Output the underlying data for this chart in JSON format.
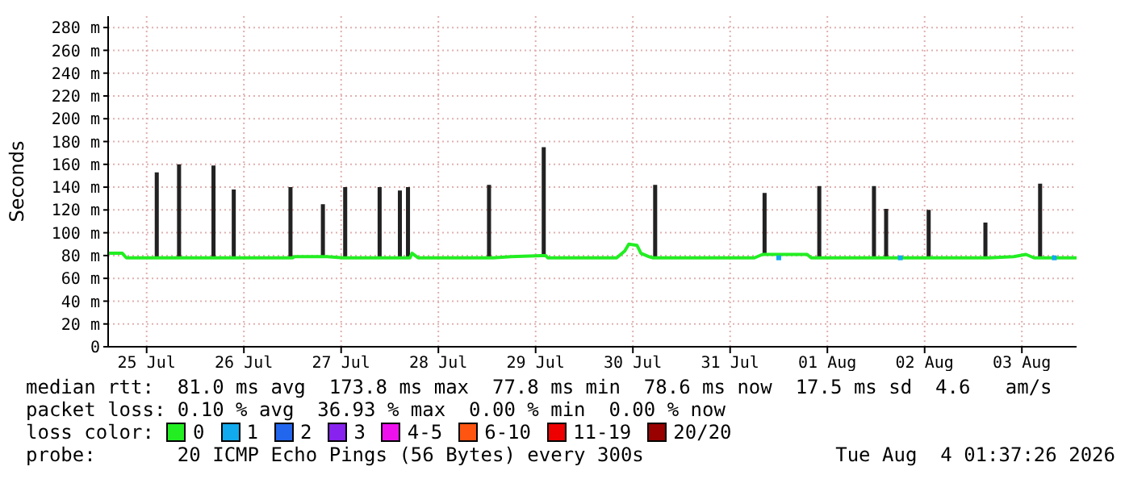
{
  "chart_data": {
    "type": "line",
    "ylabel": "Seconds",
    "x": [
      "2026-07-25T02:30",
      "2026-07-25T06:00",
      "2026-07-25T07:00",
      "2026-07-25T14:00",
      "2026-07-25T15:00",
      "2026-07-25T15:30",
      "2026-07-25T19:30",
      "2026-07-25T20:30",
      "2026-07-25T21:00",
      "2026-07-26T04:00",
      "2026-07-26T05:00",
      "2026-07-26T05:30",
      "2026-07-26T09:00",
      "2026-07-26T10:00",
      "2026-07-26T10:30",
      "2026-07-26T23:00",
      "2026-07-27T00:00",
      "2026-07-27T00:30",
      "2026-07-27T07:00",
      "2026-07-27T08:00",
      "2026-07-27T08:30",
      "2026-07-27T12:30",
      "2026-07-27T13:30",
      "2026-07-27T14:00",
      "2026-07-27T21:00",
      "2026-07-27T22:00",
      "2026-07-27T22:30",
      "2026-07-28T02:00",
      "2026-07-28T03:00",
      "2026-07-28T03:30",
      "2026-07-28T04:00",
      "2026-07-28T05:00",
      "2026-07-28T05:30",
      "2026-07-28T07:00",
      "2026-07-29T00:00",
      "2026-07-29T01:00",
      "2026-07-29T01:30",
      "2026-07-29T06:00",
      "2026-07-29T13:30",
      "2026-07-29T14:30",
      "2026-07-29T15:00",
      "2026-07-30T08:00",
      "2026-07-30T10:00",
      "2026-07-30T11:00",
      "2026-07-30T13:00",
      "2026-07-30T14:00",
      "2026-07-30T16:00",
      "2026-07-30T17:00",
      "2026-07-30T18:00",
      "2026-07-30T18:30",
      "2026-07-31T18:00",
      "2026-07-31T20:00",
      "2026-07-31T21:00",
      "2026-07-31T21:30",
      "2026-08-01T07:00",
      "2026-08-01T08:00",
      "2026-08-01T09:30",
      "2026-08-01T10:30",
      "2026-08-01T11:00",
      "2026-08-01T23:00",
      "2026-08-02T00:00",
      "2026-08-02T00:30",
      "2026-08-02T02:00",
      "2026-08-02T03:00",
      "2026-08-02T03:30",
      "2026-08-02T12:30",
      "2026-08-02T13:30",
      "2026-08-02T14:00",
      "2026-08-03T02:30",
      "2026-08-03T03:30",
      "2026-08-03T04:00",
      "2026-08-03T10:00",
      "2026-08-03T13:00",
      "2026-08-03T15:00",
      "2026-08-03T16:00",
      "2026-08-03T17:00",
      "2026-08-03T17:30",
      "2026-08-04T01:30"
    ],
    "series": [
      {
        "type": "area",
        "color": "#222222",
        "values": [
          null,
          null,
          null,
          153,
          153,
          null,
          160,
          160,
          null,
          159,
          159,
          null,
          138,
          138,
          null,
          140,
          140,
          null,
          125,
          125,
          null,
          140,
          140,
          null,
          140,
          140,
          null,
          137,
          137,
          null,
          140,
          140,
          null,
          null,
          142,
          142,
          null,
          null,
          175,
          175,
          null,
          null,
          null,
          null,
          null,
          null,
          null,
          142,
          142,
          null,
          null,
          135,
          135,
          null,
          null,
          null,
          141,
          141,
          null,
          141,
          141,
          null,
          121,
          121,
          null,
          120,
          120,
          null,
          109,
          109,
          null,
          null,
          null,
          null,
          143,
          143,
          null,
          null
        ]
      },
      {
        "name": "0",
        "color": "#22ee22",
        "values": [
          82,
          82,
          78,
          78,
          78,
          78,
          78,
          78,
          78,
          78,
          78,
          78,
          78,
          78,
          78,
          78,
          78,
          79,
          79,
          79,
          79,
          78,
          78,
          78,
          78,
          78,
          78,
          78,
          78,
          78,
          78,
          78,
          82,
          78,
          78,
          78,
          78,
          79,
          80,
          80,
          78,
          78,
          84,
          90,
          89,
          82,
          79,
          78,
          78,
          78,
          78,
          81,
          81,
          81,
          81,
          78,
          78,
          78,
          78,
          78,
          78,
          78,
          78,
          78,
          78,
          78,
          78,
          78,
          78,
          78,
          78,
          79,
          81,
          78,
          78,
          78,
          78,
          78
        ]
      },
      {
        "name": "1",
        "type": "scatter",
        "color": "#11aaee",
        "x": [
          "2026-08-01T00:00",
          "2026-08-02T06:00",
          "2026-08-03T20:00"
        ],
        "values": [
          78,
          78,
          78
        ]
      }
    ],
    "xlim": [
      "2026-07-25T02:30",
      "2026-08-04T01:30"
    ],
    "xticks": [
      {
        "value": "2026-07-25T12:00",
        "label": "25 Jul"
      },
      {
        "value": "2026-07-26T12:00",
        "label": "26 Jul"
      },
      {
        "value": "2026-07-27T12:00",
        "label": "27 Jul"
      },
      {
        "value": "2026-07-28T12:00",
        "label": "28 Jul"
      },
      {
        "value": "2026-07-29T12:00",
        "label": "29 Jul"
      },
      {
        "value": "2026-07-30T12:00",
        "label": "30 Jul"
      },
      {
        "value": "2026-07-31T12:00",
        "label": "31 Jul"
      },
      {
        "value": "2026-08-01T12:00",
        "label": "01 Aug"
      },
      {
        "value": "2026-08-02T12:00",
        "label": "02 Aug"
      },
      {
        "value": "2026-08-03T12:00",
        "label": "03 Aug"
      }
    ],
    "ylim": [
      0,
      290
    ],
    "yticks": [
      0,
      {
        "value": 20,
        "label": "20 m"
      },
      {
        "value": 40,
        "label": "40 m"
      },
      {
        "value": 60,
        "label": "60 m"
      },
      {
        "value": 80,
        "label": "80 m"
      },
      {
        "value": 100,
        "label": "100 m"
      },
      {
        "value": 120,
        "label": "120 m"
      },
      {
        "value": 140,
        "label": "140 m"
      },
      {
        "value": 160,
        "label": "160 m"
      },
      {
        "value": 180,
        "label": "180 m"
      },
      {
        "value": 200,
        "label": "200 m"
      },
      {
        "value": 220,
        "label": "220 m"
      },
      {
        "value": 240,
        "label": "240 m"
      },
      {
        "value": 260,
        "label": "260 m"
      },
      {
        "value": 280,
        "label": "280 m"
      }
    ],
    "grid": true,
    "legend": "bottom",
    "annotations": [
      "median rtt:  81.0 ms avg  173.8 ms max  77.8 ms min  78.6 ms now  17.5 ms sd  4.6   am/s",
      "packet loss: 0.10 % avg  36.93 % max  0.00 % min  0.00 % now",
      "loss color:",
      "2",
      "3",
      "4-5",
      "6-10",
      "11-19",
      "20/20",
      "probe:       20 ICMP Echo Pings (56 Bytes) every 300s",
      "Tue Aug  4 01:37:26 2026"
    ]
  }
}
